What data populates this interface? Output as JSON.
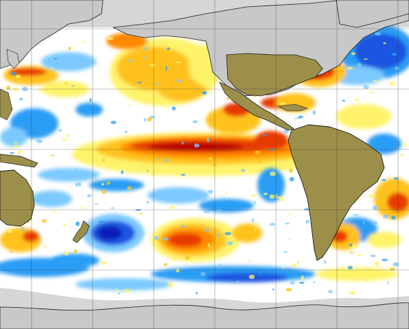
{
  "map": {
    "kind": "sea-surface-temperature-anomaly",
    "projection": "equirectangular",
    "grid": true,
    "colors": {
      "ocean_neutral": "#ffffff",
      "land_olive": "#9c8f4a",
      "land_gray": "#c8c8c8",
      "land_gray_dark": "#a9a9a9",
      "ice_gray": "#d6d6d6",
      "coast_line": "#1a1a1a",
      "grid_line": "#333333",
      "warm_1": "#fff36b",
      "warm_2": "#ffc21a",
      "warm_3": "#ff8a00",
      "warm_4": "#e83a00",
      "warm_5": "#b80000",
      "cool_1": "#7cc9ff",
      "cool_2": "#2a9df4",
      "cool_3": "#1a55e0",
      "cool_4": "#0a1fb8"
    }
  }
}
